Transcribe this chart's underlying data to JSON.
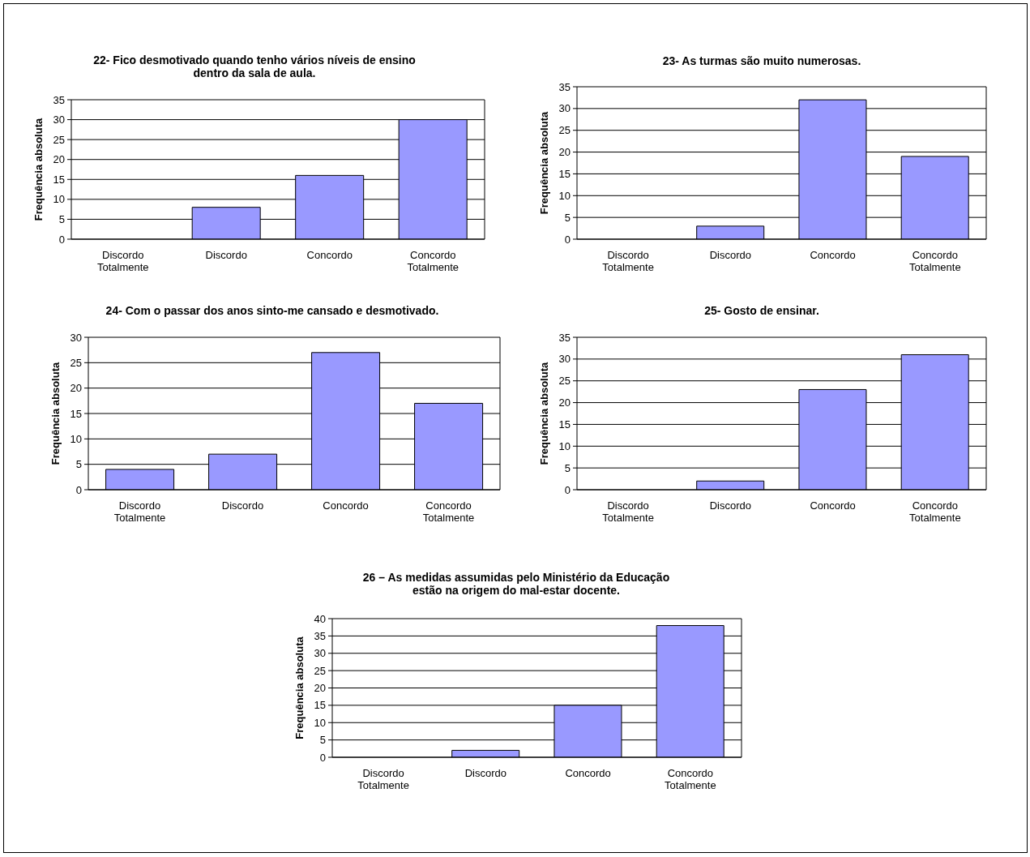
{
  "chart_data": [
    {
      "type": "bar",
      "title": "22- Fico desmotivado quando tenho vários níveis de ensino dentro da sala de aula.",
      "ylabel": "Frequência absoluta",
      "categories": [
        "Discordo Totalmente",
        "Discordo",
        "Concordo",
        "Concordo Totalmente"
      ],
      "values": [
        0,
        8,
        16,
        30
      ],
      "color": "#9999ff",
      "ylim": [
        0,
        35
      ],
      "yticks": [
        0,
        5,
        10,
        15,
        20,
        25,
        30,
        35
      ],
      "grid": "y"
    },
    {
      "type": "bar",
      "title": "23- As turmas são muito numerosas.",
      "ylabel": "Frequência absoluta",
      "categories": [
        "Discordo Totalmente",
        "Discordo",
        "Concordo",
        "Concordo Totalmente"
      ],
      "values": [
        0,
        3,
        32,
        19
      ],
      "color": "#9999ff",
      "ylim": [
        0,
        35
      ],
      "yticks": [
        0,
        5,
        10,
        15,
        20,
        25,
        30,
        35
      ],
      "grid": "y"
    },
    {
      "type": "bar",
      "title": "24- Com o passar dos anos sinto-me cansado e desmotivado.",
      "ylabel": "Frequência absoluta",
      "categories": [
        "Discordo Totalmente",
        "Discordo",
        "Concordo",
        "Concordo Totalmente"
      ],
      "values": [
        4,
        7,
        27,
        17
      ],
      "color": "#9999ff",
      "ylim": [
        0,
        30
      ],
      "yticks": [
        0,
        5,
        10,
        15,
        20,
        25,
        30
      ],
      "grid": "y"
    },
    {
      "type": "bar",
      "title": "25- Gosto de ensinar.",
      "ylabel": "Frequência absoluta",
      "categories": [
        "Discordo Totalmente",
        "Discordo",
        "Concordo",
        "Concordo Totalmente"
      ],
      "values": [
        0,
        2,
        23,
        31
      ],
      "color": "#9999ff",
      "ylim": [
        0,
        35
      ],
      "yticks": [
        0,
        5,
        10,
        15,
        20,
        25,
        30,
        35
      ],
      "grid": "y"
    },
    {
      "type": "bar",
      "title": "26 – As medidas assumidas pelo Ministério da Educação estão na origem do mal-estar docente.",
      "ylabel": "Frequência absoluta",
      "categories": [
        "Discordo Totalmente",
        "Discordo",
        "Concordo",
        "Concordo Totalmente"
      ],
      "values": [
        0,
        2,
        15,
        38
      ],
      "color": "#9999ff",
      "ylim": [
        0,
        40
      ],
      "yticks": [
        0,
        5,
        10,
        15,
        20,
        25,
        30,
        35,
        40
      ],
      "grid": "y"
    }
  ]
}
